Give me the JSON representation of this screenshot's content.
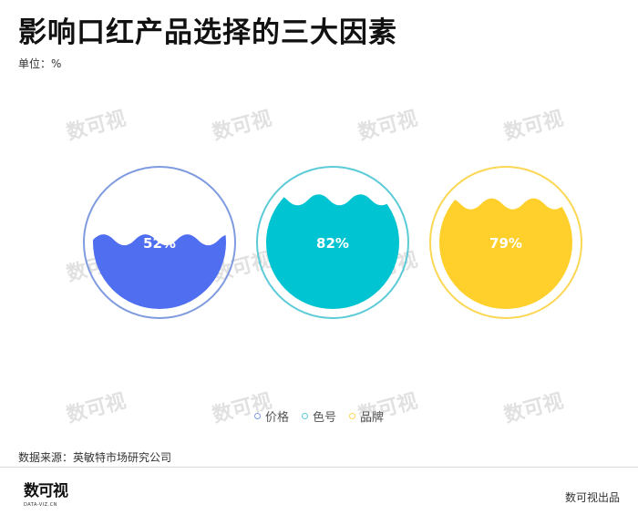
{
  "header": {
    "title": "影响口红产品选择的三大因素",
    "unit": "单位：%"
  },
  "chart_data": {
    "type": "liquid-fill",
    "series": [
      {
        "name": "价格",
        "value": 52,
        "label": "52%",
        "fill_color": "#4f6ef0",
        "ring_color": "#7f9be0"
      },
      {
        "name": "色号",
        "value": 82,
        "label": "82%",
        "fill_color": "#00c4d1",
        "ring_color": "#5ccbd8"
      },
      {
        "name": "品牌",
        "value": 79,
        "label": "79%",
        "fill_color": "#ffd02b",
        "ring_color": "#fbd753"
      }
    ],
    "legend_position": "bottom-center",
    "unit": "%"
  },
  "footer": {
    "source": "数据来源：英敏特市场研究公司",
    "logo_mark": "数可视",
    "logo_sub": "DATA-VIZ.CN",
    "publisher": "数可视出品"
  },
  "watermark": {
    "text": "数可视"
  }
}
